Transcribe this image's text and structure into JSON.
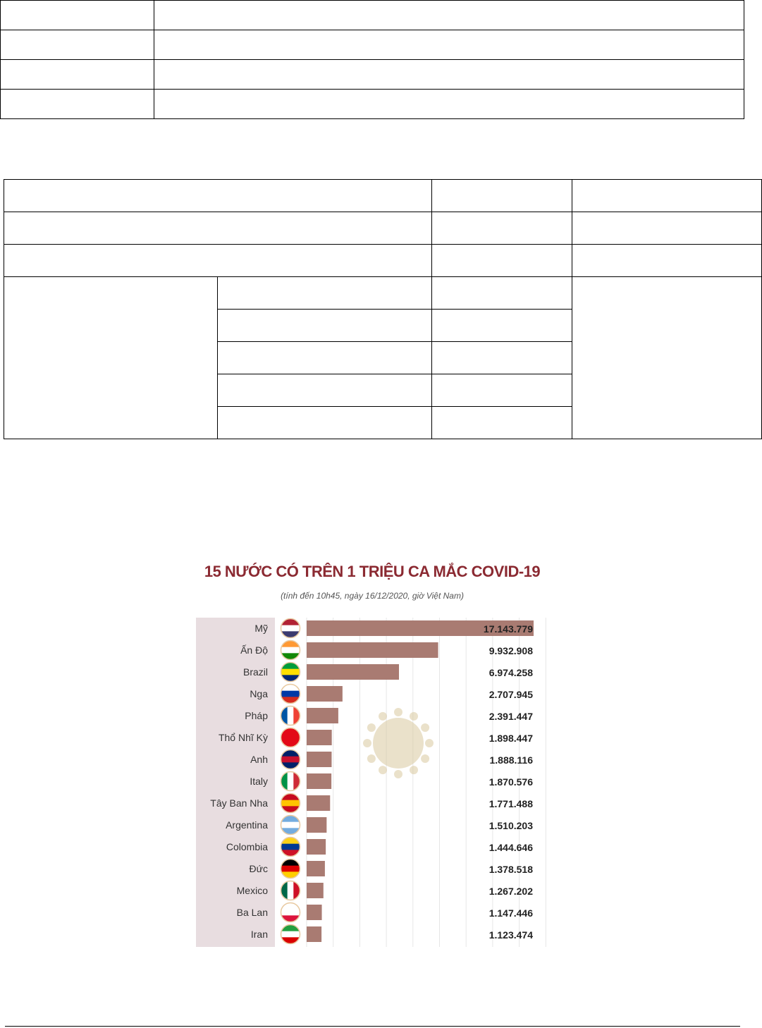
{
  "table1": {
    "rows": 4,
    "cols": 2
  },
  "table2": {
    "rows": 8
  },
  "chart_data": {
    "type": "bar",
    "orientation": "horizontal",
    "title": "15 NƯỚC CÓ TRÊN 1 TRIỆU CA MẮC COVID-19",
    "subtitle": "(tính đến 10h45, ngày 16/12/2020, giờ Việt Nam)",
    "categories": [
      "Mỹ",
      "Ấn Độ",
      "Brazil",
      "Nga",
      "Pháp",
      "Thổ Nhĩ Kỳ",
      "Anh",
      "Italy",
      "Tây Ban Nha",
      "Argentina",
      "Colombia",
      "Đức",
      "Mexico",
      "Ba Lan",
      "Iran"
    ],
    "values": [
      17143779,
      9932908,
      6974258,
      2707945,
      2391447,
      1898447,
      1888116,
      1870576,
      1771488,
      1510203,
      1444646,
      1378518,
      1267202,
      1147446,
      1123474
    ],
    "value_labels": [
      "17.143.779",
      "9.932.908",
      "6.974.258",
      "2.707.945",
      "2.391.447",
      "1.898.447",
      "1.888.116",
      "1.870.576",
      "1.771.488",
      "1.510.203",
      "1.444.646",
      "1.378.518",
      "1.267.202",
      "1.147.446",
      "1.123.474"
    ],
    "flags": [
      "us-flag-icon",
      "india-flag-icon",
      "brazil-flag-icon",
      "russia-flag-icon",
      "france-flag-icon",
      "turkey-flag-icon",
      "uk-flag-icon",
      "italy-flag-icon",
      "spain-flag-icon",
      "argentina-flag-icon",
      "colombia-flag-icon",
      "germany-flag-icon",
      "mexico-flag-icon",
      "poland-flag-icon",
      "iran-flag-icon"
    ],
    "bar_color": "#a97b72",
    "title_color": "#8b2a32",
    "label_panel_color": "#e8dde0",
    "grid": true
  }
}
